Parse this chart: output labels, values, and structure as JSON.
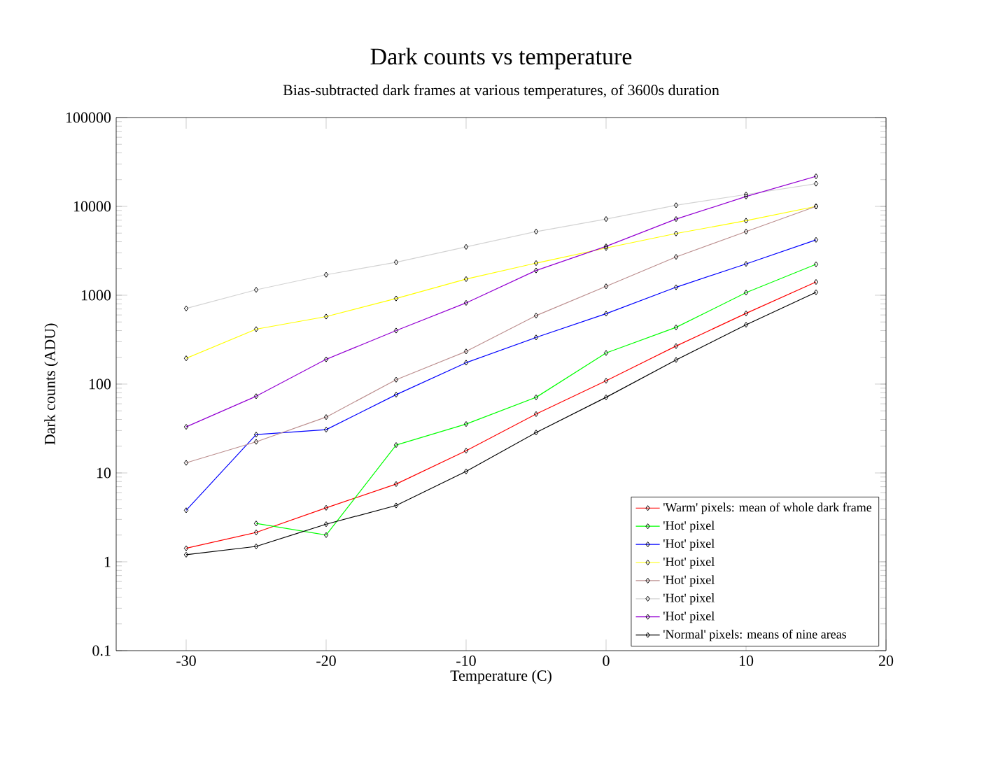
{
  "chart_data": {
    "type": "line",
    "title": "Dark counts vs temperature",
    "subtitle": "Bias-subtracted dark frames at various temperatures, of 3600s duration",
    "xlabel": "Temperature (C)",
    "ylabel": "Dark counts (ADU)",
    "x": [
      -30,
      -25,
      -20,
      -15,
      -10,
      -5,
      0,
      5,
      10,
      15
    ],
    "series": [
      {
        "name": "'Warm' pixels: mean of whole dark frame",
        "color": "#ff0000",
        "values": [
          1.42,
          2.14,
          4.05,
          7.5,
          17.8,
          46,
          109,
          268,
          625,
          1410
        ]
      },
      {
        "name": "'Hot' pixel",
        "color": "#00ff00",
        "values": [
          null,
          2.7,
          2.0,
          20.6,
          35.5,
          71,
          224,
          435,
          1070,
          2230
        ]
      },
      {
        "name": "'Hot' pixel",
        "color": "#0000ff",
        "values": [
          3.8,
          27,
          30.7,
          76,
          174,
          335,
          620,
          1230,
          2250,
          4200
        ]
      },
      {
        "name": "'Hot' pixel",
        "color": "#ffff00",
        "values": [
          195,
          415,
          575,
          920,
          1520,
          2300,
          3400,
          4950,
          6900,
          10000
        ]
      },
      {
        "name": "'Hot' pixel",
        "color": "#bc8f8f",
        "values": [
          13,
          22.4,
          42.5,
          112,
          233,
          590,
          1260,
          2700,
          5200,
          10000
        ]
      },
      {
        "name": "'Hot' pixel",
        "color": "#d3d3d3",
        "values": [
          710,
          1150,
          1700,
          2350,
          3500,
          5200,
          7200,
          10300,
          13600,
          18000
        ]
      },
      {
        "name": "'Hot' pixel",
        "color": "#9400d3",
        "values": [
          33,
          73,
          190,
          400,
          820,
          1900,
          3550,
          7200,
          12900,
          21800
        ]
      },
      {
        "name": "'Normal' pixels: means of nine areas",
        "color": "#000000",
        "values": [
          1.2,
          1.49,
          2.65,
          4.3,
          10.4,
          28.5,
          71,
          187,
          465,
          1080
        ]
      }
    ],
    "xlim": [
      -35,
      20
    ],
    "xticks": [
      -30,
      -20,
      -10,
      0,
      10,
      20
    ],
    "ylim": [
      0.1,
      100000
    ],
    "yticks": [
      0.1,
      1,
      10,
      100,
      1000,
      10000,
      100000
    ],
    "log": "y",
    "grid": false,
    "legend": "bottom right",
    "marker": "diamond",
    "line_style": "solid"
  }
}
